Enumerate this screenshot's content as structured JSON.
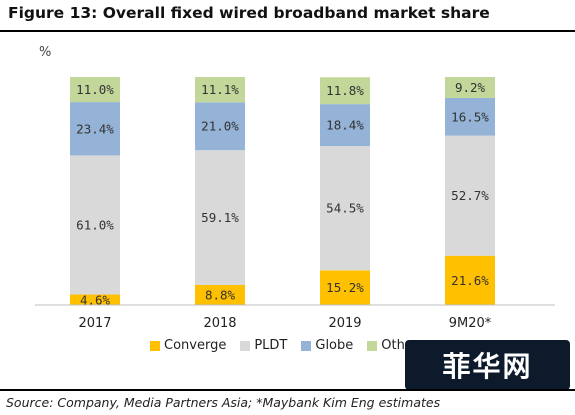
{
  "figure": {
    "title": "Figure 13: Overall fixed wired broadband market share",
    "unit": "%",
    "source": "Source: Company, Media Partners Asia; *Maybank Kim Eng estimates",
    "watermark": "菲华网"
  },
  "chart_data": {
    "type": "bar",
    "stacked": true,
    "categories": [
      "2017",
      "2018",
      "2019",
      "9M20*"
    ],
    "ylim": [
      0,
      100
    ],
    "ylabel": "%",
    "series": [
      {
        "name": "Converge",
        "color": "#ffc000",
        "values": [
          4.6,
          8.8,
          15.2,
          21.6
        ]
      },
      {
        "name": "PLDT",
        "color": "#d9d9d9",
        "values": [
          61.0,
          59.1,
          54.5,
          52.7
        ]
      },
      {
        "name": "Globe",
        "color": "#95b3d7",
        "values": [
          23.4,
          21.0,
          18.4,
          16.5
        ]
      },
      {
        "name": "Others",
        "color": "#c4d79b",
        "values": [
          11.0,
          11.1,
          11.8,
          9.2
        ]
      }
    ],
    "data_labels": [
      [
        "4.6%",
        "8.8%",
        "15.2%",
        "21.6%"
      ],
      [
        "61.0%",
        "59.1%",
        "54.5%",
        "52.7%"
      ],
      [
        "23.4%",
        "21.0%",
        "18.4%",
        "16.5%"
      ],
      [
        "11.0%",
        "11.1%",
        "11.8%",
        "9.2%"
      ]
    ],
    "legend_labels": [
      "Converge",
      "PLDT",
      "Globe",
      "Oth"
    ],
    "legend_position": "bottom",
    "grid": false
  }
}
